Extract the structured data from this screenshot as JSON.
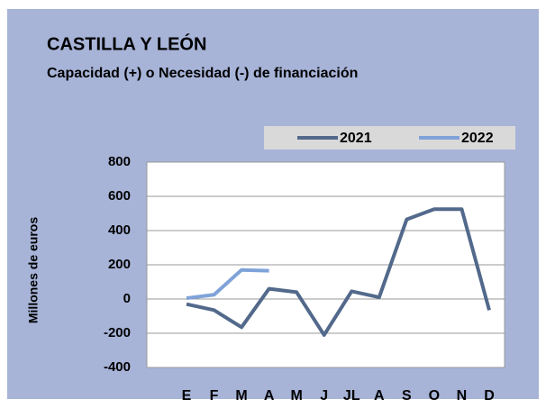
{
  "chart_data": {
    "type": "line",
    "title": "CASTILLA Y LEÓN",
    "subtitle": "Capacidad (+) o Necesidad (-) de financiación",
    "y_label": "Millones de euros",
    "categories": [
      "E",
      "F",
      "M",
      "A",
      "M",
      "J",
      "JL",
      "A",
      "S",
      "O",
      "N",
      "D"
    ],
    "series": [
      {
        "name": "2021",
        "color": "#52698b",
        "values": [
          -30,
          -65,
          -165,
          60,
          40,
          -210,
          45,
          10,
          465,
          525,
          525,
          -65
        ]
      },
      {
        "name": "2022",
        "color": "#7fa3d9",
        "values": [
          5,
          25,
          170,
          165,
          null,
          null,
          null,
          null,
          null,
          null,
          null,
          null
        ]
      }
    ],
    "ylim": [
      -400,
      800
    ],
    "yticks": [
      -400,
      -200,
      0,
      200,
      400,
      600,
      800
    ],
    "grid": true
  }
}
